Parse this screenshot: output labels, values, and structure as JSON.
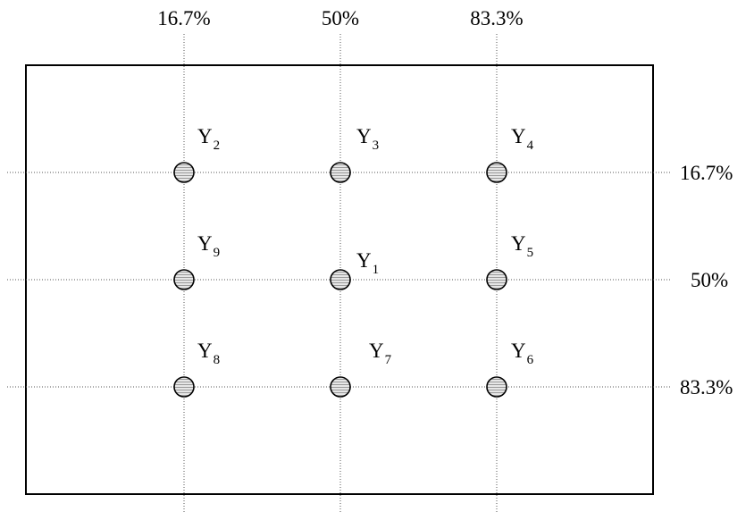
{
  "columns": [
    {
      "label": "16.7%"
    },
    {
      "label": "50%"
    },
    {
      "label": "83.3%"
    }
  ],
  "rows": [
    {
      "label": "16.7%"
    },
    {
      "label": "50%"
    },
    {
      "label": "83.3%"
    }
  ],
  "points": [
    {
      "id": "Y2",
      "letter": "Y",
      "sub": "2",
      "col": 0,
      "row": 0
    },
    {
      "id": "Y3",
      "letter": "Y",
      "sub": "3",
      "col": 1,
      "row": 0
    },
    {
      "id": "Y4",
      "letter": "Y",
      "sub": "4",
      "col": 2,
      "row": 0
    },
    {
      "id": "Y9",
      "letter": "Y",
      "sub": "9",
      "col": 0,
      "row": 1
    },
    {
      "id": "Y1",
      "letter": "Y",
      "sub": "1",
      "col": 1,
      "row": 1
    },
    {
      "id": "Y5",
      "letter": "Y",
      "sub": "5",
      "col": 2,
      "row": 1
    },
    {
      "id": "Y8",
      "letter": "Y",
      "sub": "8",
      "col": 0,
      "row": 2
    },
    {
      "id": "Y7",
      "letter": "Y",
      "sub": "7",
      "col": 1,
      "row": 2
    },
    {
      "id": "Y6",
      "letter": "Y",
      "sub": "6",
      "col": 2,
      "row": 2
    }
  ]
}
